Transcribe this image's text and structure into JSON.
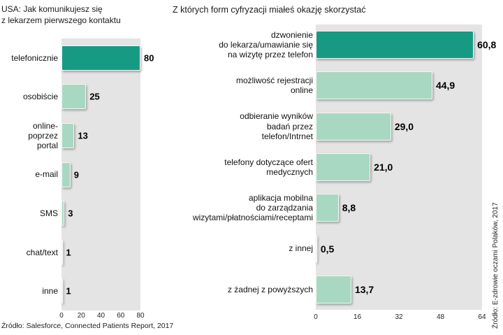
{
  "chart_data": [
    {
      "type": "bar",
      "orientation": "horizontal",
      "title": "USA: Jak komunikujesz się\nz lekarzem pierwszego kontaktu",
      "categories": [
        "telefonicznie",
        "osobiście",
        "online-\npoprzez\nportal",
        "e-mail",
        "SMS",
        "chat/text",
        "inne"
      ],
      "values": [
        80,
        25,
        13,
        9,
        3,
        1,
        1
      ],
      "value_labels": [
        "80",
        "25",
        "13",
        "9",
        "3",
        "1",
        "1"
      ],
      "xlim": [
        0,
        80
      ],
      "xticks": [
        0,
        20,
        40,
        60,
        80
      ],
      "grid": false,
      "legend_position": "none",
      "source": "Źródło: Salesforce, Connected Patients Report, 2017",
      "highlight_index": 0,
      "colors": {
        "highlight": "#169a83",
        "normal": "#a9d8c2",
        "plot_bg": "#e4e4e4"
      }
    },
    {
      "type": "bar",
      "orientation": "horizontal",
      "title": "Z których form cyfryzacji miałeś okazję skorzystać",
      "categories": [
        "dzwonienie\ndo lekarza/umawianie się\nna wizytę przez telefon",
        "możliwość rejestracji\nonline",
        "odbieranie wyników\nbadań przez\ntelefon/Intrnet",
        "telefony dotyczące ofert\nmedycznych",
        "aplikacja mobilna\ndo zarządzania\nwizytami/płatnościami/receptami",
        "z innej",
        "z żadnej z powyższych"
      ],
      "values": [
        60.8,
        44.9,
        29.0,
        21.0,
        8.8,
        0.5,
        13.7
      ],
      "value_labels": [
        "60,8",
        "44,9",
        "29,0",
        "21,0",
        "8,8",
        "0,5",
        "13,7"
      ],
      "xlim": [
        0,
        64
      ],
      "xticks": [
        0,
        16,
        32,
        48,
        64
      ],
      "grid": false,
      "legend_position": "none",
      "source": "Źródło: E-zdrowie oczami Polaków, 2017",
      "highlight_index": 0,
      "colors": {
        "highlight": "#169a83",
        "normal": "#a9d8c2",
        "plot_bg": "#e4e4e4"
      }
    }
  ]
}
